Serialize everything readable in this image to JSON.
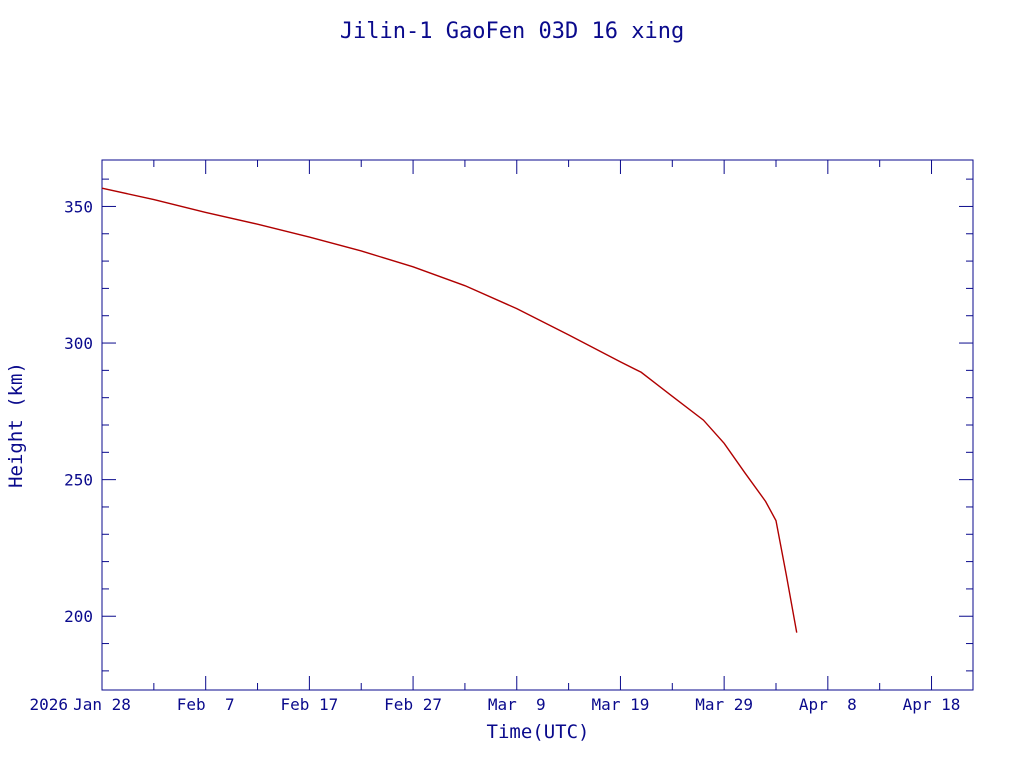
{
  "chart_data": {
    "type": "line",
    "title": "Jilin-1 GaoFen 03D 16 xing",
    "xlabel": "Time(UTC)",
    "ylabel": "Height (km)",
    "xlim": [
      "2026-01-28",
      "2026-04-22"
    ],
    "ylim": [
      173,
      367
    ],
    "x_ticks": [
      {
        "date": "2026-01-28",
        "label": "2026 Jan 28"
      },
      {
        "date": "2026-02-07",
        "label": "Feb  7"
      },
      {
        "date": "2026-02-17",
        "label": "Feb 17"
      },
      {
        "date": "2026-02-27",
        "label": "Feb 27"
      },
      {
        "date": "2026-03-09",
        "label": "Mar  9"
      },
      {
        "date": "2026-03-19",
        "label": "Mar 19"
      },
      {
        "date": "2026-03-29",
        "label": "Mar 29"
      },
      {
        "date": "2026-04-08",
        "label": "Apr  8"
      },
      {
        "date": "2026-04-18",
        "label": "Apr 18"
      }
    ],
    "y_ticks": [
      200,
      250,
      300,
      350
    ],
    "y_minor_step": 10,
    "x_minor_days": 5,
    "grid": false,
    "series": [
      {
        "color": "#b00000",
        "points": [
          {
            "x": "2026-01-28",
            "y": 356.7
          },
          {
            "x": "2026-02-02",
            "y": 352.5
          },
          {
            "x": "2026-02-07",
            "y": 347.8
          },
          {
            "x": "2026-02-12",
            "y": 343.5
          },
          {
            "x": "2026-02-17",
            "y": 338.8
          },
          {
            "x": "2026-02-22",
            "y": 333.7
          },
          {
            "x": "2026-02-27",
            "y": 327.9
          },
          {
            "x": "2026-03-04",
            "y": 321.0
          },
          {
            "x": "2026-03-09",
            "y": 312.6
          },
          {
            "x": "2026-03-14",
            "y": 303.0
          },
          {
            "x": "2026-03-19",
            "y": 293.1
          },
          {
            "x": "2026-03-21",
            "y": 289.3
          },
          {
            "x": "2026-03-24",
            "y": 280.5
          },
          {
            "x": "2026-03-27",
            "y": 271.8
          },
          {
            "x": "2026-03-29",
            "y": 263.3
          },
          {
            "x": "2026-03-31",
            "y": 252.5
          },
          {
            "x": "2026-04-02",
            "y": 242.0
          },
          {
            "x": "2026-04-03",
            "y": 235.0
          },
          {
            "x": "2026-04-04",
            "y": 215.0
          },
          {
            "x": "2026-04-05",
            "y": 194.0
          }
        ]
      }
    ]
  }
}
